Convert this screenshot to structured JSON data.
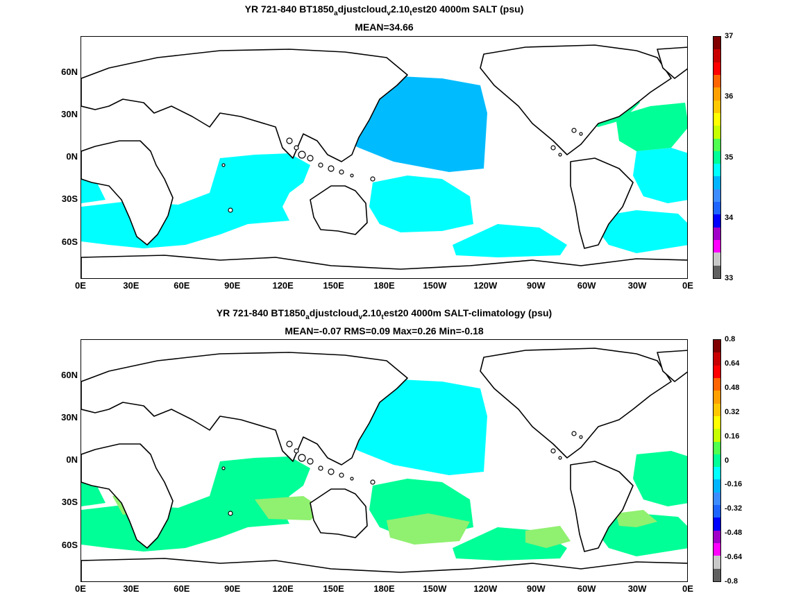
{
  "panels": [
    {
      "title_parts": [
        "YR 721-840 BT1850",
        "a",
        "djustcloud",
        "v",
        "2.10",
        "t",
        "est20 4000m SALT (psu)"
      ],
      "subtitle": "MEAN=34.66",
      "colorbar": {
        "colors": [
          "#606060",
          "#c8c8c8",
          "#ff00ff",
          "#a000c8",
          "#0000ff",
          "#1e64ff",
          "#3c8cff",
          "#00b4ff",
          "#00ffff",
          "#00ff96",
          "#50ff50",
          "#c8ff00",
          "#ffff00",
          "#ffc800",
          "#ffa000",
          "#ff6400",
          "#ff0000",
          "#c80000",
          "#800000"
        ],
        "labels": [
          "33",
          "34",
          "35",
          "36",
          "37"
        ]
      },
      "fills": [
        {
          "color": "#00bcff",
          "region": "north-pacific"
        },
        {
          "color": "#00ffff",
          "region": "southern-ocean"
        },
        {
          "color": "#00ff96",
          "region": "north-atlantic"
        }
      ]
    },
    {
      "title_parts": [
        "YR 721-840 BT1850",
        "a",
        "djustcloud",
        "v",
        "2.10",
        "t",
        "est20 4000m SALT-climatology (psu)"
      ],
      "subtitle": "MEAN=-0.07   RMS=0.09   Max=0.26   Min=-0.18",
      "colorbar": {
        "colors": [
          "#606060",
          "#c8c8c8",
          "#ff00ff",
          "#a000c8",
          "#0000ff",
          "#1e64ff",
          "#3c8cff",
          "#00b4ff",
          "#00ffff",
          "#00ff96",
          "#50ff50",
          "#c8ff00",
          "#ffff00",
          "#ffc800",
          "#ffa000",
          "#ff6400",
          "#ff0000",
          "#c80000",
          "#800000"
        ],
        "labels": [
          "-0.8",
          "-0.64",
          "-0.48",
          "-0.32",
          "-0.16",
          "0",
          "0.16",
          "0.32",
          "0.48",
          "0.64",
          "0.8"
        ]
      },
      "fills": [
        {
          "color": "#00ffff",
          "region": "north-pacific"
        },
        {
          "color": "#00ff96",
          "region": "southern-ocean"
        },
        {
          "color": "#90f070",
          "region": "patches"
        }
      ]
    }
  ],
  "axes": {
    "x_ticks": [
      "0E",
      "30E",
      "60E",
      "90E",
      "120E",
      "150E",
      "180E",
      "150W",
      "120W",
      "90W",
      "60W",
      "30W",
      "0E"
    ],
    "y_ticks": [
      "60N",
      "30N",
      "0N",
      "30S",
      "60S"
    ]
  }
}
